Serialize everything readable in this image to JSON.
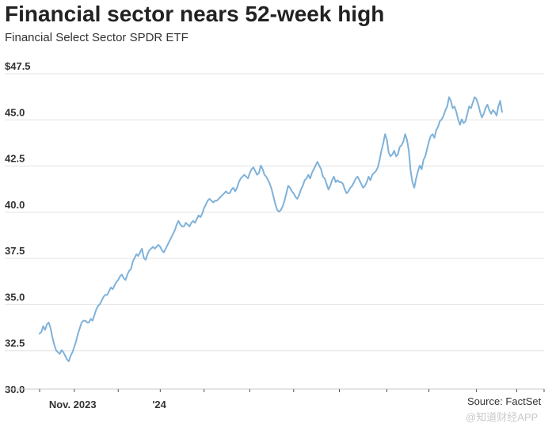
{
  "colors": {
    "line": "#7fb2d9",
    "grid": "#e3e3e3",
    "axis": "#c8c8c8",
    "text": "#222222"
  },
  "chart_data": {
    "type": "line",
    "title": "Financial sector nears 52-week high",
    "subtitle": "Financial Select Sector SPDR ETF",
    "ylim": [
      30.0,
      47.5
    ],
    "yticks": [
      30.0,
      32.5,
      35.0,
      37.5,
      40.0,
      42.5,
      45.0,
      47.5
    ],
    "ytick_labels": [
      "30.0",
      "32.5",
      "35.0",
      "37.5",
      "40.0",
      "42.5",
      "45.0",
      "$47.5"
    ],
    "x_range": [
      0,
      276
    ],
    "xtick_positions": [
      0,
      19,
      43,
      66,
      90,
      115,
      139,
      164,
      190,
      213,
      239,
      261,
      276
    ],
    "xtick_labels": [
      {
        "index": 19,
        "label": "Nov. 2023"
      },
      {
        "index": 66,
        "label": "'24"
      }
    ],
    "grid": true,
    "series": [
      {
        "name": "Financial Select Sector SPDR ETF",
        "values": [
          33.0,
          33.1,
          33.4,
          33.2,
          33.5,
          33.6,
          33.3,
          32.8,
          32.4,
          32.1,
          32.0,
          31.9,
          32.1,
          32.0,
          31.8,
          31.6,
          31.5,
          31.8,
          32.0,
          32.3,
          32.6,
          33.0,
          33.3,
          33.6,
          33.7,
          33.7,
          33.6,
          33.6,
          33.8,
          33.7,
          34.0,
          34.3,
          34.5,
          34.6,
          34.8,
          35.0,
          35.1,
          35.1,
          35.3,
          35.5,
          35.4,
          35.6,
          35.8,
          35.9,
          36.1,
          36.2,
          36.0,
          35.9,
          36.2,
          36.4,
          36.5,
          36.9,
          37.1,
          37.3,
          37.2,
          37.4,
          37.6,
          37.1,
          37.0,
          37.3,
          37.5,
          37.6,
          37.7,
          37.6,
          37.7,
          37.8,
          37.7,
          37.5,
          37.4,
          37.6,
          37.8,
          38.0,
          38.2,
          38.4,
          38.6,
          38.9,
          39.1,
          38.9,
          38.8,
          38.8,
          39.0,
          38.9,
          38.8,
          39.0,
          39.1,
          39.0,
          39.2,
          39.4,
          39.3,
          39.5,
          39.8,
          40.0,
          40.2,
          40.3,
          40.2,
          40.1,
          40.2,
          40.2,
          40.3,
          40.4,
          40.5,
          40.6,
          40.7,
          40.6,
          40.6,
          40.8,
          40.9,
          40.7,
          40.9,
          41.2,
          41.4,
          41.5,
          41.6,
          41.5,
          41.4,
          41.7,
          41.9,
          42.0,
          41.8,
          41.6,
          41.7,
          42.1,
          41.9,
          41.6,
          41.5,
          41.3,
          41.1,
          40.8,
          40.4,
          40.0,
          39.7,
          39.6,
          39.7,
          39.9,
          40.2,
          40.6,
          41.0,
          40.9,
          40.7,
          40.6,
          40.4,
          40.3,
          40.5,
          40.8,
          41.0,
          41.3,
          41.4,
          41.6,
          41.4,
          41.7,
          41.9,
          42.1,
          42.3,
          42.1,
          41.9,
          41.5,
          41.4,
          41.1,
          40.8,
          41.0,
          41.3,
          41.5,
          41.2,
          41.3,
          41.2,
          41.2,
          41.1,
          40.8,
          40.6,
          40.7,
          40.9,
          41.0,
          41.2,
          41.4,
          41.5,
          41.3,
          41.1,
          40.9,
          41.0,
          41.2,
          41.5,
          41.3,
          41.6,
          41.7,
          41.8,
          42.0,
          42.4,
          42.9,
          43.3,
          43.8,
          43.5,
          42.8,
          42.6,
          42.7,
          42.9,
          42.6,
          42.7,
          43.1,
          43.2,
          43.4,
          43.8,
          43.5,
          42.9,
          41.8,
          41.2,
          40.9,
          41.4,
          41.8,
          42.1,
          41.9,
          42.4,
          42.6,
          43.0,
          43.4,
          43.7,
          43.8,
          43.6,
          44.0,
          44.2,
          44.5,
          44.6,
          44.8,
          45.1,
          45.3,
          45.8,
          45.6,
          45.2,
          45.3,
          45.0,
          44.6,
          44.3,
          44.6,
          44.4,
          44.5,
          44.9,
          45.3,
          45.2,
          45.5,
          45.8,
          45.7,
          45.4,
          45.0,
          44.7,
          44.9,
          45.2,
          45.4,
          45.1,
          44.9,
          45.1,
          45.0,
          44.8,
          45.3,
          45.6,
          45.0
        ]
      }
    ],
    "source": "Source: FactSet"
  },
  "watermark": "@知道财经APP"
}
